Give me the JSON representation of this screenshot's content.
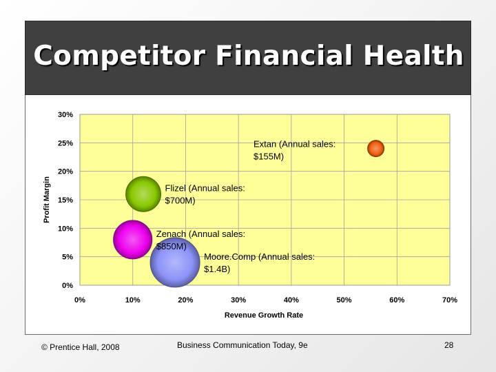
{
  "slide": {
    "title": "Competitor Financial Health",
    "footer_left": "© Prentice Hall, 2008",
    "footer_center": "Business Communication Today, 9e",
    "page_number": "28"
  },
  "colors": {
    "title_bar": "#404040",
    "plot_background": "#ffff99"
  },
  "chart_data": {
    "type": "bubble",
    "xlabel": "Revenue Growth Rate",
    "ylabel": "Profit Margin",
    "xlim": [
      0,
      70
    ],
    "ylim": [
      0,
      30
    ],
    "x_ticks": [
      "0%",
      "10%",
      "20%",
      "30%",
      "40%",
      "50%",
      "60%",
      "70%"
    ],
    "y_ticks": [
      "0%",
      "5%",
      "10%",
      "15%",
      "20%",
      "25%",
      "30%"
    ],
    "grid": true,
    "points": [
      {
        "name": "Extan",
        "label_line1": "Extan (Annual sales:",
        "label_line2": "$155M)",
        "x": 56,
        "y": 24,
        "sales_millions": 155,
        "color": "#f06010"
      },
      {
        "name": "Flizel",
        "label_line1": "Flizel (Annual sales:",
        "label_line2": "$700M)",
        "x": 12,
        "y": 16,
        "sales_millions": 700,
        "color": "#88c800"
      },
      {
        "name": "Zenach",
        "label_line1": "Zenach (Annual sales:",
        "label_line2": "$850M)",
        "x": 10,
        "y": 8,
        "sales_millions": 850,
        "color": "#ee00ee"
      },
      {
        "name": "Moore.Comp",
        "label_line1": "Moore.Comp (Annual sales:",
        "label_line2": "$1.4B)",
        "x": 18,
        "y": 4,
        "sales_millions": 1400,
        "color": "#8c92f8"
      }
    ]
  }
}
